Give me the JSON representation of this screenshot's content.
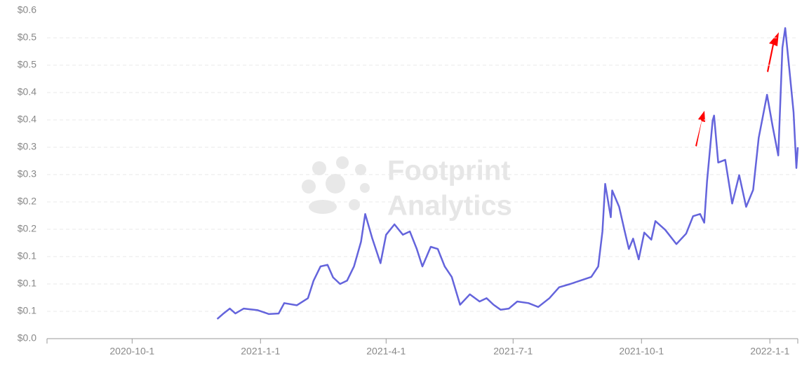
{
  "chart_data": {
    "type": "line",
    "watermark": [
      "Footprint",
      "Analytics"
    ],
    "x": [
      "2020-12-1",
      "2020-12-5",
      "2020-12-10",
      "2020-12-14",
      "2020-12-20",
      "2020-12-30",
      "2021-1-7",
      "2021-1-14",
      "2021-1-18",
      "2021-1-27",
      "2021-2-4",
      "2021-2-8",
      "2021-2-13",
      "2021-2-18",
      "2021-2-22",
      "2021-2-27",
      "2021-3-4",
      "2021-3-9",
      "2021-3-14",
      "2021-3-17",
      "2021-3-22",
      "2021-3-28",
      "2021-4-1",
      "2021-4-7",
      "2021-4-13",
      "2021-4-18",
      "2021-4-23",
      "2021-4-27",
      "2021-5-3",
      "2021-5-8",
      "2021-5-13",
      "2021-5-18",
      "2021-5-24",
      "2021-5-31",
      "2021-6-7",
      "2021-6-12",
      "2021-6-17",
      "2021-6-22",
      "2021-6-28",
      "2021-7-4",
      "2021-7-12",
      "2021-7-19",
      "2021-7-27",
      "2021-8-3",
      "2021-8-11",
      "2021-8-18",
      "2021-8-26",
      "2021-8-31",
      "2021-9-3",
      "2021-9-5",
      "2021-9-9",
      "2021-9-10",
      "2021-9-15",
      "2021-9-19",
      "2021-9-22",
      "2021-9-25",
      "2021-9-29",
      "2021-10-3",
      "2021-10-8",
      "2021-10-11",
      "2021-10-18",
      "2021-10-26",
      "2021-11-2",
      "2021-11-7",
      "2021-11-12",
      "2021-11-15",
      "2021-11-17",
      "2021-11-21",
      "2021-11-22",
      "2021-11-25",
      "2021-11-30",
      "2021-12-5",
      "2021-12-10",
      "2021-12-15",
      "2021-12-20",
      "2021-12-24",
      "2021-12-30",
      "2022-1-3",
      "2022-1-7",
      "2022-1-10",
      "2022-1-12",
      "2022-1-15",
      "2022-1-18",
      "2022-1-20",
      "2022-1-21"
    ],
    "series": [
      {
        "color": "#6464dc",
        "values": [
          0.036,
          0.045,
          0.055,
          0.046,
          0.055,
          0.052,
          0.045,
          0.046,
          0.065,
          0.061,
          0.074,
          0.106,
          0.132,
          0.135,
          0.112,
          0.1,
          0.106,
          0.132,
          0.177,
          0.228,
          0.184,
          0.138,
          0.19,
          0.209,
          0.19,
          0.196,
          0.164,
          0.132,
          0.168,
          0.164,
          0.132,
          0.113,
          0.062,
          0.081,
          0.068,
          0.074,
          0.062,
          0.053,
          0.055,
          0.068,
          0.065,
          0.058,
          0.074,
          0.094,
          0.1,
          0.106,
          0.113,
          0.132,
          0.196,
          0.283,
          0.222,
          0.271,
          0.241,
          0.196,
          0.164,
          0.183,
          0.145,
          0.194,
          0.181,
          0.215,
          0.199,
          0.173,
          0.192,
          0.224,
          0.228,
          0.212,
          0.288,
          0.399,
          0.408,
          0.322,
          0.327,
          0.247,
          0.299,
          0.241,
          0.272,
          0.367,
          0.446,
          0.388,
          0.335,
          0.532,
          0.568,
          0.491,
          0.414,
          0.312,
          0.35
        ]
      }
    ],
    "xlim": [
      "2020-8-1",
      "2022-1-21"
    ],
    "xticks": [
      "2020-10-1",
      "2021-1-1",
      "2021-4-1",
      "2021-7-1",
      "2021-10-1",
      "2022-1-1"
    ],
    "ylim": [
      0,
      0.57
    ],
    "yticks": [
      {
        "value": 0,
        "label": "$0.0"
      },
      {
        "value": 0.05,
        "label": "$0.1"
      },
      {
        "value": 0.1,
        "label": "$0.1"
      },
      {
        "value": 0.15,
        "label": "$0.1"
      },
      {
        "value": 0.2,
        "label": "$0.2"
      },
      {
        "value": 0.25,
        "label": "$0.2"
      },
      {
        "value": 0.3,
        "label": "$0.3"
      },
      {
        "value": 0.35,
        "label": "$0.3"
      },
      {
        "value": 0.4,
        "label": "$0.4"
      },
      {
        "value": 0.45,
        "label": "$0.4"
      },
      {
        "value": 0.5,
        "label": "$0.5"
      },
      {
        "value": 0.55,
        "label": "$0.5"
      },
      {
        "value": 0.6,
        "label": "$0.6"
      }
    ],
    "grid": true
  }
}
